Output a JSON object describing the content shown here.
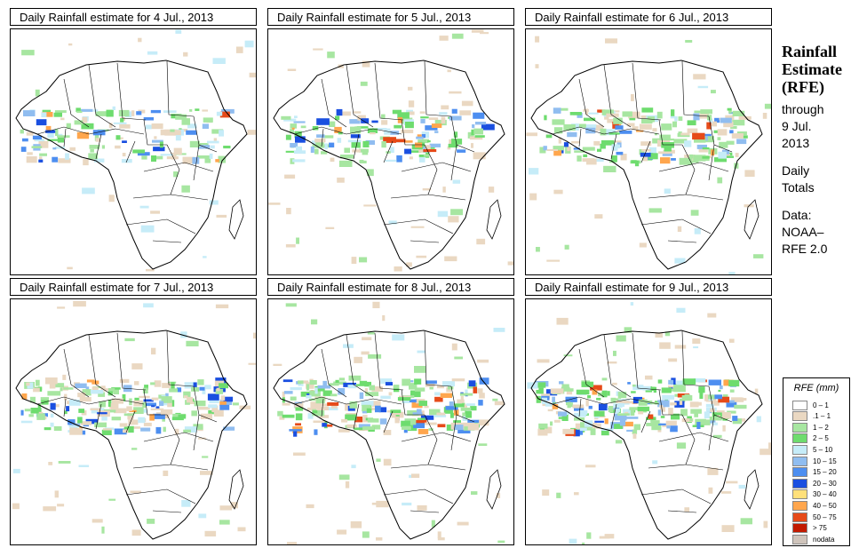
{
  "panels": [
    {
      "title": "Daily Rainfall estimate for  4 Jul., 2013",
      "intensity": 1
    },
    {
      "title": "Daily Rainfall estimate for  5 Jul., 2013",
      "intensity": 2
    },
    {
      "title": "Daily Rainfall estimate for  6 Jul., 2013",
      "intensity": 3
    },
    {
      "title": "Daily Rainfall estimate for  7 Jul., 2013",
      "intensity": 4
    },
    {
      "title": "Daily Rainfall estimate for  8 Jul., 2013",
      "intensity": 5
    },
    {
      "title": "Daily Rainfall estimate for  9 Jul., 2013",
      "intensity": 6
    }
  ],
  "sidebar": {
    "heading_1": "Rainfall",
    "heading_2": "Estimate",
    "heading_3": "(RFE)",
    "through": "through",
    "date_1": "9 Jul.",
    "date_2": "2013",
    "daily": "Daily",
    "totals": "Totals",
    "data_label": "Data:",
    "source_1": "NOAA–",
    "source_2": "RFE 2.0"
  },
  "legend": {
    "title": "RFE (mm)",
    "items": [
      {
        "label": "0 – 1",
        "color": "#ffffff"
      },
      {
        "label": ".1 – 1",
        "color": "#ead8c2"
      },
      {
        "label": "1 – 2",
        "color": "#a7e6a1"
      },
      {
        "label": "2 – 5",
        "color": "#6edc6e"
      },
      {
        "label": "5 – 10",
        "color": "#c6ecf8"
      },
      {
        "label": "10 – 15",
        "color": "#90bdf0"
      },
      {
        "label": "15 – 20",
        "color": "#4d8ef0"
      },
      {
        "label": "20 – 30",
        "color": "#1a4fe0"
      },
      {
        "label": "30 – 40",
        "color": "#ffe07a"
      },
      {
        "label": "40 – 50",
        "color": "#ffa64d"
      },
      {
        "label": "50 – 75",
        "color": "#e64a19"
      },
      {
        "label": "> 75",
        "color": "#c21a00"
      },
      {
        "label": "nodata",
        "color": "#cfc4bb"
      }
    ]
  }
}
